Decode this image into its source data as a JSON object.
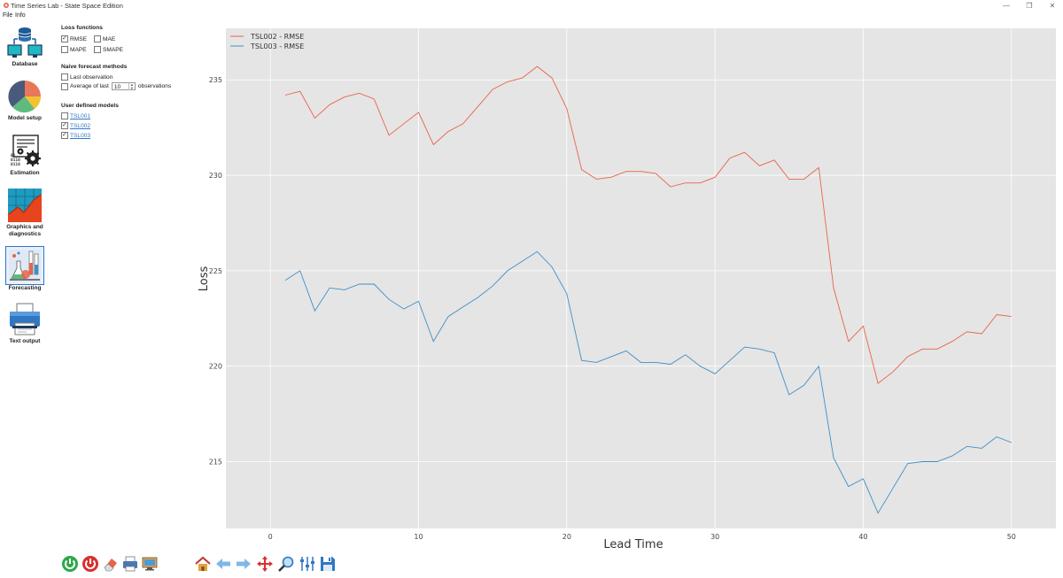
{
  "window": {
    "title": "Time Series Lab - State Space Edition",
    "minimize_glyph": "—",
    "restore_glyph": "❐",
    "close_glyph": "✕"
  },
  "menu": [
    "File",
    "Info"
  ],
  "sidebar": [
    {
      "label": "Database",
      "icon": "database-icon"
    },
    {
      "label": "Model setup",
      "icon": "pie-chart-icon"
    },
    {
      "label": "Estimation",
      "icon": "gears-icon"
    },
    {
      "label": "Graphics and diagnostics",
      "icon": "graphics-icon"
    },
    {
      "label": "Forecasting",
      "icon": "flask-icon",
      "active": true
    },
    {
      "label": "Text output",
      "icon": "printer-icon"
    }
  ],
  "options": {
    "loss_header": "Loss functions",
    "rmse": {
      "label": "RMSE",
      "checked": true
    },
    "mae": {
      "label": "MAE",
      "checked": false
    },
    "mape": {
      "label": "MAPE",
      "checked": false
    },
    "smape": {
      "label": "SMAPE",
      "checked": false
    },
    "naive_header": "Naive forecast methods",
    "last_obs": {
      "label": "Last observation",
      "checked": false
    },
    "average": {
      "label": "Average of last",
      "checked": false,
      "value": "10",
      "suffix": "observations"
    },
    "user_header": "User defined models",
    "models": [
      {
        "label": "TSL001",
        "checked": false
      },
      {
        "label": "TSL002",
        "checked": true
      },
      {
        "label": "TSL003",
        "checked": true
      }
    ]
  },
  "chart_data": {
    "type": "line",
    "xlabel": "Lead Time",
    "ylabel": "Loss",
    "xlim": [
      -3,
      53
    ],
    "ylim": [
      211.5,
      237.7
    ],
    "xticks": [
      0,
      10,
      20,
      30,
      40,
      50
    ],
    "yticks": [
      215,
      220,
      225,
      230,
      235
    ],
    "grid": true,
    "legend_position": "top-left",
    "background": "#e5e5e5",
    "x": [
      1,
      2,
      3,
      4,
      5,
      6,
      7,
      8,
      9,
      10,
      11,
      12,
      13,
      14,
      15,
      16,
      17,
      18,
      19,
      20,
      21,
      22,
      23,
      24,
      25,
      26,
      27,
      28,
      29,
      30,
      31,
      32,
      33,
      34,
      35,
      36,
      37,
      38,
      39,
      40,
      41,
      42,
      43,
      44,
      45,
      46,
      47,
      48,
      49,
      50
    ],
    "series": [
      {
        "name": "TSL002 - RMSE",
        "color": "#e8644a",
        "values": [
          234.2,
          234.4,
          233.0,
          233.7,
          234.1,
          234.3,
          234.0,
          232.1,
          232.7,
          233.3,
          231.6,
          232.3,
          232.7,
          233.6,
          234.5,
          234.9,
          235.1,
          235.7,
          235.1,
          233.5,
          230.3,
          229.8,
          229.9,
          230.2,
          230.2,
          230.1,
          229.4,
          229.6,
          229.6,
          229.9,
          230.9,
          231.2,
          230.5,
          230.8,
          229.8,
          229.8,
          230.4,
          224.1,
          221.3,
          222.1,
          219.1,
          219.7,
          220.5,
          220.9,
          220.9,
          221.3,
          221.8,
          221.7,
          222.7,
          222.6
        ]
      },
      {
        "name": "TSL003 - RMSE",
        "color": "#3e8fc8",
        "values": [
          224.5,
          225.0,
          222.9,
          224.1,
          224.0,
          224.3,
          224.3,
          223.5,
          223.0,
          223.4,
          221.3,
          222.6,
          223.1,
          223.6,
          224.2,
          225.0,
          225.5,
          226.0,
          225.2,
          223.8,
          220.3,
          220.2,
          220.5,
          220.8,
          220.2,
          220.2,
          220.1,
          220.6,
          220.0,
          219.6,
          220.3,
          221.0,
          220.9,
          220.7,
          218.5,
          219.0,
          220.0,
          215.2,
          213.7,
          214.1,
          212.3,
          213.6,
          214.9,
          215.0,
          215.0,
          215.3,
          215.8,
          215.7,
          216.3,
          216.0
        ]
      }
    ]
  },
  "toolbar": [
    {
      "name": "run-icon"
    },
    {
      "name": "stop-icon"
    },
    {
      "name": "eraser-icon"
    },
    {
      "name": "print-icon"
    },
    {
      "name": "export-icon"
    },
    {
      "name": "home-icon"
    },
    {
      "name": "back-arrow-icon"
    },
    {
      "name": "forward-arrow-icon"
    },
    {
      "name": "pan-icon"
    },
    {
      "name": "zoom-icon"
    },
    {
      "name": "sliders-icon"
    },
    {
      "name": "save-icon"
    }
  ]
}
